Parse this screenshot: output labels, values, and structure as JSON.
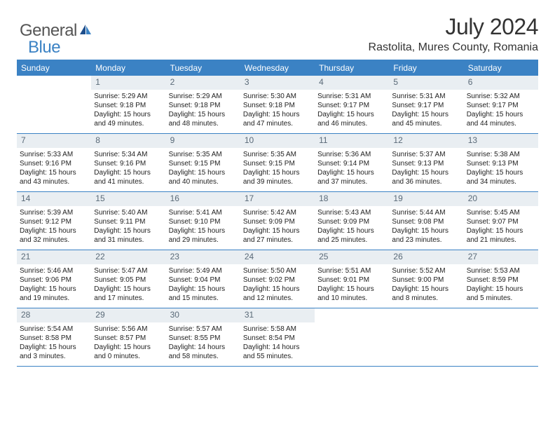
{
  "logo": {
    "part1": "General",
    "part2": "Blue"
  },
  "title": "July 2024",
  "location": "Rastolita, Mures County, Romania",
  "day_header_bg": "#3b82c4",
  "daynum_bg": "#e9eef2",
  "border_color": "#3b82c4",
  "headers": [
    "Sunday",
    "Monday",
    "Tuesday",
    "Wednesday",
    "Thursday",
    "Friday",
    "Saturday"
  ],
  "weeks": [
    [
      {
        "n": "",
        "lines": []
      },
      {
        "n": "1",
        "lines": [
          "Sunrise: 5:29 AM",
          "Sunset: 9:18 PM",
          "Daylight: 15 hours",
          "and 49 minutes."
        ]
      },
      {
        "n": "2",
        "lines": [
          "Sunrise: 5:29 AM",
          "Sunset: 9:18 PM",
          "Daylight: 15 hours",
          "and 48 minutes."
        ]
      },
      {
        "n": "3",
        "lines": [
          "Sunrise: 5:30 AM",
          "Sunset: 9:18 PM",
          "Daylight: 15 hours",
          "and 47 minutes."
        ]
      },
      {
        "n": "4",
        "lines": [
          "Sunrise: 5:31 AM",
          "Sunset: 9:17 PM",
          "Daylight: 15 hours",
          "and 46 minutes."
        ]
      },
      {
        "n": "5",
        "lines": [
          "Sunrise: 5:31 AM",
          "Sunset: 9:17 PM",
          "Daylight: 15 hours",
          "and 45 minutes."
        ]
      },
      {
        "n": "6",
        "lines": [
          "Sunrise: 5:32 AM",
          "Sunset: 9:17 PM",
          "Daylight: 15 hours",
          "and 44 minutes."
        ]
      }
    ],
    [
      {
        "n": "7",
        "lines": [
          "Sunrise: 5:33 AM",
          "Sunset: 9:16 PM",
          "Daylight: 15 hours",
          "and 43 minutes."
        ]
      },
      {
        "n": "8",
        "lines": [
          "Sunrise: 5:34 AM",
          "Sunset: 9:16 PM",
          "Daylight: 15 hours",
          "and 41 minutes."
        ]
      },
      {
        "n": "9",
        "lines": [
          "Sunrise: 5:35 AM",
          "Sunset: 9:15 PM",
          "Daylight: 15 hours",
          "and 40 minutes."
        ]
      },
      {
        "n": "10",
        "lines": [
          "Sunrise: 5:35 AM",
          "Sunset: 9:15 PM",
          "Daylight: 15 hours",
          "and 39 minutes."
        ]
      },
      {
        "n": "11",
        "lines": [
          "Sunrise: 5:36 AM",
          "Sunset: 9:14 PM",
          "Daylight: 15 hours",
          "and 37 minutes."
        ]
      },
      {
        "n": "12",
        "lines": [
          "Sunrise: 5:37 AM",
          "Sunset: 9:13 PM",
          "Daylight: 15 hours",
          "and 36 minutes."
        ]
      },
      {
        "n": "13",
        "lines": [
          "Sunrise: 5:38 AM",
          "Sunset: 9:13 PM",
          "Daylight: 15 hours",
          "and 34 minutes."
        ]
      }
    ],
    [
      {
        "n": "14",
        "lines": [
          "Sunrise: 5:39 AM",
          "Sunset: 9:12 PM",
          "Daylight: 15 hours",
          "and 32 minutes."
        ]
      },
      {
        "n": "15",
        "lines": [
          "Sunrise: 5:40 AM",
          "Sunset: 9:11 PM",
          "Daylight: 15 hours",
          "and 31 minutes."
        ]
      },
      {
        "n": "16",
        "lines": [
          "Sunrise: 5:41 AM",
          "Sunset: 9:10 PM",
          "Daylight: 15 hours",
          "and 29 minutes."
        ]
      },
      {
        "n": "17",
        "lines": [
          "Sunrise: 5:42 AM",
          "Sunset: 9:09 PM",
          "Daylight: 15 hours",
          "and 27 minutes."
        ]
      },
      {
        "n": "18",
        "lines": [
          "Sunrise: 5:43 AM",
          "Sunset: 9:09 PM",
          "Daylight: 15 hours",
          "and 25 minutes."
        ]
      },
      {
        "n": "19",
        "lines": [
          "Sunrise: 5:44 AM",
          "Sunset: 9:08 PM",
          "Daylight: 15 hours",
          "and 23 minutes."
        ]
      },
      {
        "n": "20",
        "lines": [
          "Sunrise: 5:45 AM",
          "Sunset: 9:07 PM",
          "Daylight: 15 hours",
          "and 21 minutes."
        ]
      }
    ],
    [
      {
        "n": "21",
        "lines": [
          "Sunrise: 5:46 AM",
          "Sunset: 9:06 PM",
          "Daylight: 15 hours",
          "and 19 minutes."
        ]
      },
      {
        "n": "22",
        "lines": [
          "Sunrise: 5:47 AM",
          "Sunset: 9:05 PM",
          "Daylight: 15 hours",
          "and 17 minutes."
        ]
      },
      {
        "n": "23",
        "lines": [
          "Sunrise: 5:49 AM",
          "Sunset: 9:04 PM",
          "Daylight: 15 hours",
          "and 15 minutes."
        ]
      },
      {
        "n": "24",
        "lines": [
          "Sunrise: 5:50 AM",
          "Sunset: 9:02 PM",
          "Daylight: 15 hours",
          "and 12 minutes."
        ]
      },
      {
        "n": "25",
        "lines": [
          "Sunrise: 5:51 AM",
          "Sunset: 9:01 PM",
          "Daylight: 15 hours",
          "and 10 minutes."
        ]
      },
      {
        "n": "26",
        "lines": [
          "Sunrise: 5:52 AM",
          "Sunset: 9:00 PM",
          "Daylight: 15 hours",
          "and 8 minutes."
        ]
      },
      {
        "n": "27",
        "lines": [
          "Sunrise: 5:53 AM",
          "Sunset: 8:59 PM",
          "Daylight: 15 hours",
          "and 5 minutes."
        ]
      }
    ],
    [
      {
        "n": "28",
        "lines": [
          "Sunrise: 5:54 AM",
          "Sunset: 8:58 PM",
          "Daylight: 15 hours",
          "and 3 minutes."
        ]
      },
      {
        "n": "29",
        "lines": [
          "Sunrise: 5:56 AM",
          "Sunset: 8:57 PM",
          "Daylight: 15 hours",
          "and 0 minutes."
        ]
      },
      {
        "n": "30",
        "lines": [
          "Sunrise: 5:57 AM",
          "Sunset: 8:55 PM",
          "Daylight: 14 hours",
          "and 58 minutes."
        ]
      },
      {
        "n": "31",
        "lines": [
          "Sunrise: 5:58 AM",
          "Sunset: 8:54 PM",
          "Daylight: 14 hours",
          "and 55 minutes."
        ]
      },
      {
        "n": "",
        "lines": []
      },
      {
        "n": "",
        "lines": []
      },
      {
        "n": "",
        "lines": []
      }
    ]
  ]
}
